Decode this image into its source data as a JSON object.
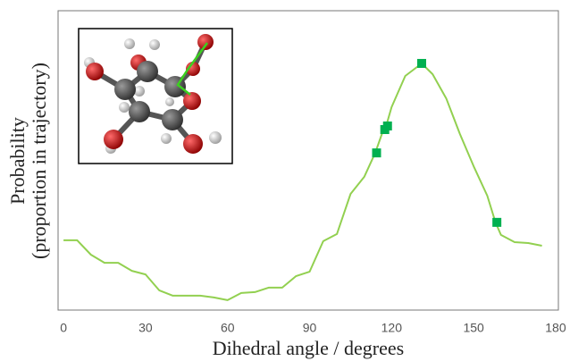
{
  "chart_data": {
    "type": "line",
    "xlabel": "Dihedral angle / degrees",
    "ylabel": [
      "Probability",
      "(proportion in trajectory)"
    ],
    "xlim": [
      -2,
      181
    ],
    "ylim": [
      0,
      1
    ],
    "xticks": [
      0,
      30,
      60,
      90,
      120,
      150,
      180
    ],
    "series": [
      {
        "color": "#92d050",
        "style": "line",
        "x": [
          0,
          5,
          10,
          15,
          20,
          25,
          30,
          35,
          40,
          45,
          50,
          55,
          60,
          65,
          70,
          75,
          80,
          85,
          90,
          95,
          100,
          105,
          110,
          114,
          117,
          118,
          120,
          125,
          131,
          135,
          140,
          145,
          150,
          155,
          158,
          160,
          165,
          170,
          175
        ],
        "values": [
          0.233,
          0.233,
          0.185,
          0.158,
          0.158,
          0.131,
          0.119,
          0.066,
          0.048,
          0.048,
          0.048,
          0.042,
          0.033,
          0.057,
          0.06,
          0.075,
          0.075,
          0.113,
          0.128,
          0.23,
          0.254,
          0.388,
          0.445,
          0.525,
          0.603,
          0.615,
          0.678,
          0.782,
          0.824,
          0.788,
          0.707,
          0.588,
          0.481,
          0.382,
          0.293,
          0.251,
          0.227,
          0.224,
          0.215
        ]
      },
      {
        "color": "#00b050",
        "style": "markers",
        "x": [
          114.5,
          117.5,
          118.5,
          131,
          158.5
        ],
        "values": [
          0.525,
          0.603,
          0.615,
          0.824,
          0.293
        ]
      }
    ]
  }
}
